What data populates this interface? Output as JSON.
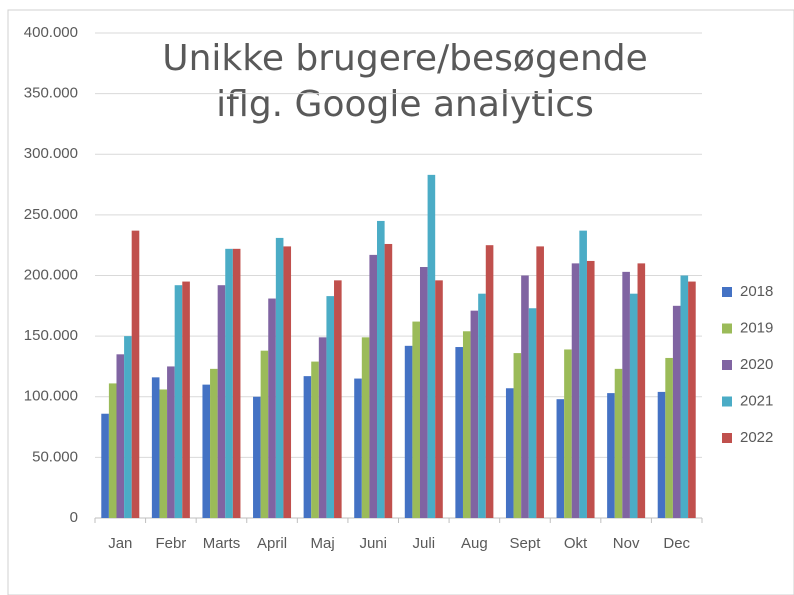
{
  "chart_data": {
    "type": "bar",
    "title": [
      "Unikke brugere/besøgende",
      "iflg. Google analytics"
    ],
    "categories": [
      "Jan",
      "Febr",
      "Marts",
      "April",
      "Maj",
      "Juni",
      "Juli",
      "Aug",
      "Sept",
      "Okt",
      "Nov",
      "Dec"
    ],
    "series": [
      {
        "name": "2018",
        "color": "#4472c4",
        "values": [
          86000,
          116000,
          110000,
          100000,
          117000,
          115000,
          142000,
          141000,
          107000,
          98000,
          103000,
          104000
        ]
      },
      {
        "name": "2019",
        "color": "#9bbb59",
        "values": [
          111000,
          106000,
          123000,
          138000,
          129000,
          149000,
          162000,
          154000,
          136000,
          139000,
          123000,
          132000
        ]
      },
      {
        "name": "2020",
        "color": "#8064a2",
        "values": [
          135000,
          125000,
          192000,
          181000,
          149000,
          217000,
          207000,
          171000,
          200000,
          210000,
          203000,
          175000
        ]
      },
      {
        "name": "2021",
        "color": "#4bacc6",
        "values": [
          150000,
          192000,
          222000,
          231000,
          183000,
          245000,
          283000,
          185000,
          173000,
          237000,
          185000,
          200000
        ]
      },
      {
        "name": "2022",
        "color": "#c0504d",
        "values": [
          237000,
          195000,
          222000,
          224000,
          196000,
          226000,
          196000,
          225000,
          224000,
          212000,
          210000,
          195000
        ]
      }
    ],
    "ylim": [
      0,
      400000
    ],
    "yticks": [
      0,
      {
        "value": 50000,
        "label": "50.000"
      },
      {
        "value": 100000,
        "label": "100.000"
      },
      {
        "value": 150000,
        "label": "150.000"
      },
      {
        "value": 200000,
        "label": "200.000"
      },
      {
        "value": 250000,
        "label": "250.000"
      },
      {
        "value": 300000,
        "label": "300.000"
      },
      {
        "value": 350000,
        "label": "350.000"
      },
      {
        "value": 400000,
        "label": "400.000"
      }
    ],
    "grid": true,
    "legend": "right"
  }
}
